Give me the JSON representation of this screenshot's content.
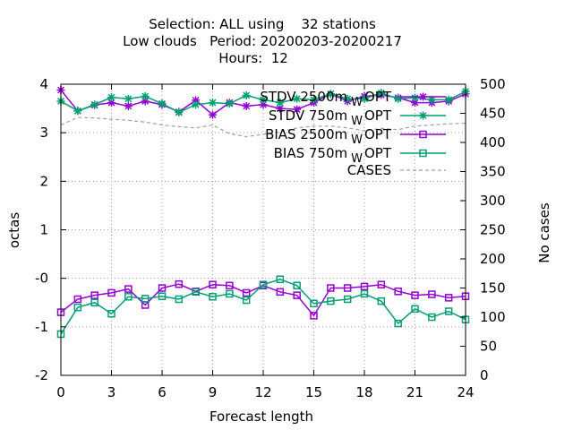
{
  "chart_data": {
    "type": "line",
    "title_lines": [
      "Selection: ALL using    32 stations",
      "Low clouds   Period: 20200203-20200217",
      "Hours:  12"
    ],
    "xlabel": "Forecast length",
    "ylabel": "octas",
    "y2label": "No cases",
    "xlim": [
      0,
      24
    ],
    "ylim": [
      -2,
      4
    ],
    "y2lim": [
      0,
      500
    ],
    "grid": true,
    "legend_position": "top-right",
    "x_ticks": [
      "0",
      "3",
      "6",
      "9",
      "12",
      "15",
      "18",
      "21",
      "24"
    ],
    "y_ticks": [
      "-2",
      "-1",
      "-0",
      "1",
      "2",
      "3",
      "4"
    ],
    "y2_ticks": [
      "0",
      "50",
      "100",
      "150",
      "200",
      "250",
      "300",
      "350",
      "400",
      "450",
      "500"
    ],
    "x": [
      0,
      1,
      2,
      3,
      4,
      5,
      6,
      7,
      8,
      9,
      10,
      11,
      12,
      13,
      14,
      15,
      16,
      17,
      18,
      19,
      20,
      21,
      22,
      23,
      24
    ],
    "series": [
      {
        "name": "STDV 2500m  W OPT",
        "legend_main": "STDV 2500m",
        "legend_sub": "W",
        "legend_tail": "OPT",
        "axis": "y",
        "color": "#9400d3",
        "marker": "star",
        "dash": false,
        "values": [
          3.88,
          3.45,
          3.57,
          3.62,
          3.55,
          3.65,
          3.58,
          3.43,
          3.67,
          3.37,
          3.62,
          3.55,
          3.58,
          3.5,
          3.48,
          3.62,
          3.8,
          3.65,
          3.75,
          3.78,
          3.72,
          3.62,
          3.62,
          3.65,
          3.8
        ]
      },
      {
        "name": "STDV 750m  W OPT",
        "legend_main": "STDV 750m",
        "legend_sub": "W",
        "legend_tail": "OPT",
        "axis": "y",
        "color": "#009e73",
        "marker": "star",
        "dash": false,
        "values": [
          3.65,
          3.45,
          3.58,
          3.73,
          3.7,
          3.75,
          3.6,
          3.42,
          3.58,
          3.62,
          3.6,
          3.77,
          3.68,
          3.62,
          3.7,
          3.68,
          3.8,
          3.7,
          3.7,
          3.82,
          3.7,
          3.72,
          3.68,
          3.68,
          3.85
        ]
      },
      {
        "name": "BIAS 2500m  W OPT",
        "legend_main": "BIAS 2500m",
        "legend_sub": "W",
        "legend_tail": "OPT",
        "axis": "y",
        "color": "#9400d3",
        "marker": "square",
        "dash": false,
        "values": [
          -0.7,
          -0.43,
          -0.35,
          -0.3,
          -0.22,
          -0.55,
          -0.2,
          -0.12,
          -0.27,
          -0.13,
          -0.15,
          -0.3,
          -0.15,
          -0.28,
          -0.35,
          -0.77,
          -0.2,
          -0.2,
          -0.17,
          -0.13,
          -0.27,
          -0.35,
          -0.33,
          -0.4,
          -0.37
        ]
      },
      {
        "name": "BIAS 750m  W OPT",
        "legend_main": "BIAS 750m",
        "legend_sub": "W",
        "legend_tail": "OPT",
        "axis": "y",
        "color": "#009e73",
        "marker": "square",
        "dash": false,
        "values": [
          -1.15,
          -0.6,
          -0.5,
          -0.73,
          -0.38,
          -0.42,
          -0.37,
          -0.43,
          -0.28,
          -0.38,
          -0.32,
          -0.45,
          -0.13,
          -0.02,
          -0.15,
          -0.52,
          -0.47,
          -0.43,
          -0.32,
          -0.47,
          -0.93,
          -0.63,
          -0.8,
          -0.68,
          -0.85
        ]
      },
      {
        "name": "CASES",
        "legend_main": "CASES",
        "legend_sub": "",
        "legend_tail": "",
        "axis": "y2",
        "color": "#a0a0a0",
        "marker": "none",
        "dash": true,
        "values": [
          430,
          443,
          442,
          440,
          438,
          435,
          430,
          427,
          425,
          430,
          415,
          410,
          414,
          418,
          425,
          428,
          428,
          425,
          420,
          424,
          422,
          428,
          430,
          432,
          433
        ]
      }
    ]
  }
}
